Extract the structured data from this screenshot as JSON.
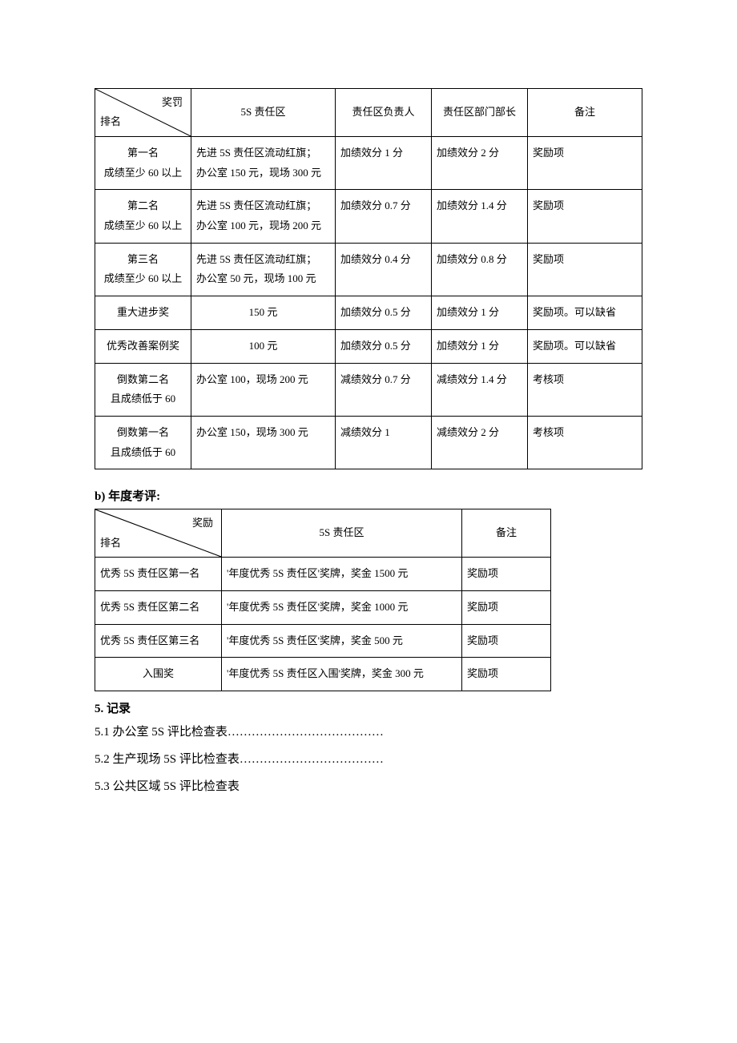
{
  "table1": {
    "diag_top": "奖罚",
    "diag_bottom": "排名",
    "headers": [
      "5S 责任区",
      "责任区负责人",
      "责任区部门部长",
      "备注"
    ],
    "rows": [
      {
        "rank_line1": "第一名",
        "rank_line2": "成绩至少 60 以上",
        "area_line1": "先进 5S 责任区流动红旗；",
        "area_line2": "办公室 150 元，现场 300 元",
        "leader": "加绩效分 1 分",
        "dept": "加绩效分 2 分",
        "note": "奖励项"
      },
      {
        "rank_line1": "第二名",
        "rank_line2": "成绩至少 60 以上",
        "area_line1": "先进 5S 责任区流动红旗；",
        "area_line2": "办公室 100 元，现场 200 元",
        "leader": "加绩效分 0.7 分",
        "dept": "加绩效分 1.4 分",
        "note": "奖励项"
      },
      {
        "rank_line1": "第三名",
        "rank_line2": "成绩至少 60 以上",
        "area_line1": "先进 5S 责任区流动红旗；",
        "area_line2": "办公室 50 元，现场 100 元",
        "leader": "加绩效分 0.4 分",
        "dept": "加绩效分 0.8 分",
        "note": "奖励项"
      },
      {
        "rank_line1": "重大进步奖",
        "rank_line2": "",
        "area_line1": "150 元",
        "area_line2": "",
        "leader": "加绩效分 0.5 分",
        "dept": "加绩效分 1 分",
        "note": "奖励项。可以缺省"
      },
      {
        "rank_line1": "优秀改善案例奖",
        "rank_line2": "",
        "area_line1": "100 元",
        "area_line2": "",
        "leader": "加绩效分 0.5 分",
        "dept": "加绩效分 1 分",
        "note": "奖励项。可以缺省"
      },
      {
        "rank_line1": "倒数第二名",
        "rank_line2": "且成绩低于 60",
        "area_line1": "办公室 100，现场 200 元",
        "area_line2": "",
        "leader": "减绩效分 0.7 分",
        "dept": "减绩效分 1.4 分",
        "note": "考核项"
      },
      {
        "rank_line1": "倒数第一名",
        "rank_line2": "且成绩低于 60",
        "area_line1": "办公室 150，现场 300 元",
        "area_line2": "",
        "leader": "减绩效分 1",
        "dept": "减绩效分 2 分",
        "note": "考核项"
      }
    ]
  },
  "heading_b": "b)  年度考评:",
  "table2": {
    "diag_top": "奖励",
    "diag_bottom": "排名",
    "headers": [
      "5S 责任区",
      "备注"
    ],
    "rows": [
      {
        "rank": "优秀 5S 责任区第一名",
        "area": "'年度优秀 5S 责任区'奖牌，奖金 1500 元",
        "note": "奖励项"
      },
      {
        "rank": "优秀 5S 责任区第二名",
        "area": "'年度优秀 5S 责任区'奖牌，奖金 1000 元",
        "note": "奖励项"
      },
      {
        "rank": "优秀 5S 责任区第三名",
        "area": "'年度优秀 5S 责任区'奖牌，奖金 500 元",
        "note": "奖励项"
      },
      {
        "rank": "入围奖",
        "area": "'年度优秀 5S 责任区入围'奖牌，奖金 300 元",
        "note": "奖励项",
        "center_rank": true
      }
    ]
  },
  "section5": {
    "title": "5.  记录",
    "items": [
      "5.1 办公室 5S 评比检查表…………………………………",
      "5.2 生产现场 5S 评比检查表………………………………",
      "5.3 公共区域 5S 评比检查表"
    ]
  }
}
